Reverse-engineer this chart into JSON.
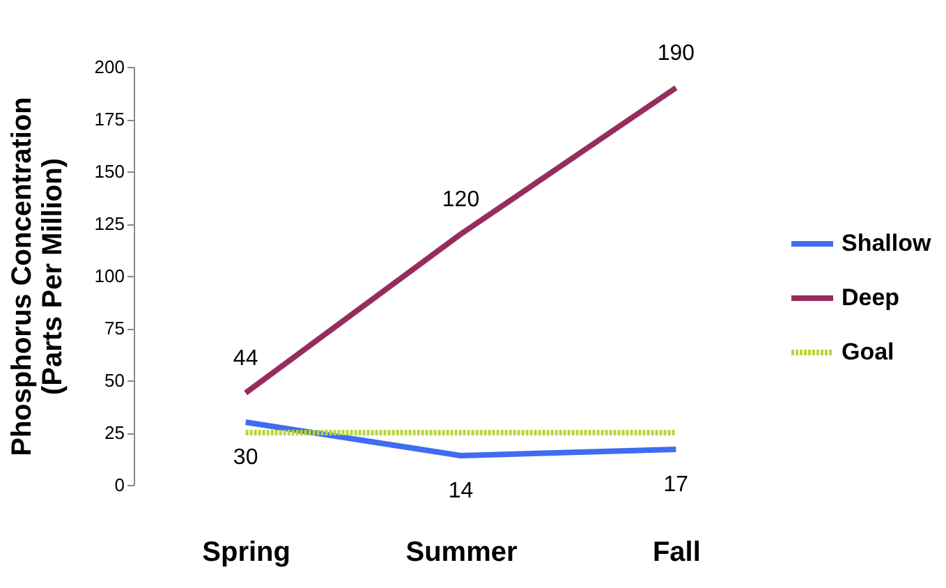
{
  "chart_data": {
    "type": "line",
    "ylabel": "Phosphorus Concentration\n(Parts Per Million)",
    "categories": [
      "Spring",
      "Summer",
      "Fall"
    ],
    "series": [
      {
        "name": "Shallow",
        "color": "#3f6cf0",
        "values": [
          30,
          14,
          17
        ],
        "value_labels": [
          "30",
          "14",
          "17"
        ]
      },
      {
        "name": "Deep",
        "color": "#962d5e",
        "values": [
          44,
          120,
          190
        ],
        "value_labels": [
          "44",
          "120",
          "190"
        ]
      },
      {
        "name": "Goal",
        "color": "#b8d43a",
        "values": [
          25,
          25,
          25
        ],
        "line_style": "dotted"
      }
    ],
    "ylim": [
      0,
      200
    ],
    "yticks": [
      0,
      25,
      50,
      75,
      100,
      125,
      150,
      175,
      200
    ],
    "grid": false,
    "legend": "right",
    "marker": "none"
  }
}
